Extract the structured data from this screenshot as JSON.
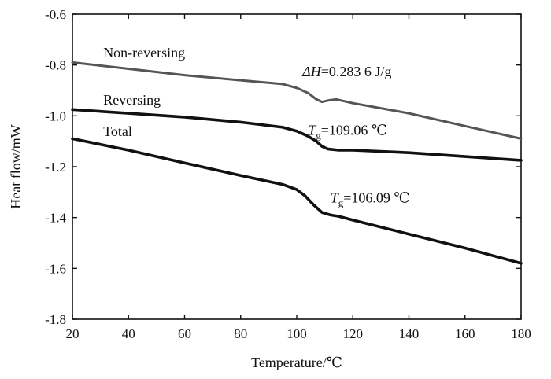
{
  "chart_data": {
    "type": "line",
    "xlabel": "Temperature/℃",
    "ylabel": "Heat flow/mW",
    "xlim": [
      20,
      180
    ],
    "ylim": [
      -1.8,
      -0.6
    ],
    "xticks": [
      20,
      40,
      60,
      80,
      100,
      120,
      140,
      160,
      180
    ],
    "yticks": [
      -0.6,
      -0.8,
      -1.0,
      -1.2,
      -1.4,
      -1.6,
      -1.8
    ],
    "xtick_labels": [
      "20",
      "40",
      "60",
      "80",
      "100",
      "120",
      "140",
      "160",
      "180"
    ],
    "ytick_labels": [
      "-0.6",
      "-0.8",
      "-1.0",
      "-1.2",
      "-1.4",
      "-1.6",
      "-1.8"
    ],
    "grid": false,
    "series": [
      {
        "name": "Non-reversing",
        "color": "#555555",
        "x": [
          20,
          40,
          60,
          80,
          95,
          100,
          104,
          107,
          109,
          111,
          114,
          120,
          140,
          160,
          180
        ],
        "y": [
          -0.79,
          -0.815,
          -0.84,
          -0.86,
          -0.875,
          -0.89,
          -0.91,
          -0.935,
          -0.945,
          -0.94,
          -0.935,
          -0.95,
          -0.99,
          -1.04,
          -1.09
        ]
      },
      {
        "name": "Reversing",
        "color": "#111111",
        "x": [
          20,
          40,
          60,
          80,
          95,
          100,
          104,
          107,
          109,
          111,
          115,
          120,
          140,
          160,
          180
        ],
        "y": [
          -0.975,
          -0.99,
          -1.005,
          -1.025,
          -1.045,
          -1.06,
          -1.08,
          -1.1,
          -1.12,
          -1.13,
          -1.135,
          -1.135,
          -1.145,
          -1.16,
          -1.175
        ]
      },
      {
        "name": "Total",
        "color": "#111111",
        "x": [
          20,
          40,
          60,
          80,
          95,
          100,
          103,
          106,
          109,
          112,
          115,
          120,
          140,
          160,
          180
        ],
        "y": [
          -1.09,
          -1.135,
          -1.185,
          -1.235,
          -1.27,
          -1.29,
          -1.315,
          -1.35,
          -1.38,
          -1.39,
          -1.395,
          -1.41,
          -1.465,
          -1.52,
          -1.58
        ]
      }
    ],
    "annotations": [
      {
        "id": "dh",
        "prefix": "ΔH",
        "text": "=0.283 6 J/g",
        "x": 102,
        "y": -0.845
      },
      {
        "id": "tg1",
        "prefix": "T",
        "sub": "g",
        "text": "=109.06 ℃",
        "x": 104,
        "y": -1.075
      },
      {
        "id": "tg2",
        "prefix": "T",
        "sub": "g",
        "text": "=106.09 ℃",
        "x": 112,
        "y": -1.34
      }
    ],
    "series_labels": [
      {
        "series": "Non-reversing",
        "x": 31,
        "y": -0.77
      },
      {
        "series": "Reversing",
        "x": 31,
        "y": -0.955
      },
      {
        "series": "Total",
        "x": 31,
        "y": -1.08
      }
    ]
  }
}
